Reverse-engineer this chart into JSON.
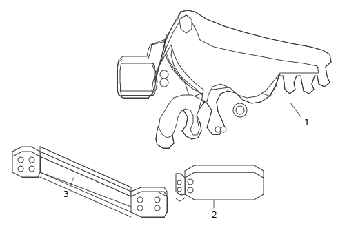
{
  "background_color": "#ffffff",
  "line_color": "#3a3a3a",
  "line_width": 0.7,
  "label_color": "#000000",
  "label_fontsize": 9,
  "fig_width": 4.9,
  "fig_height": 3.6,
  "dpi": 100
}
